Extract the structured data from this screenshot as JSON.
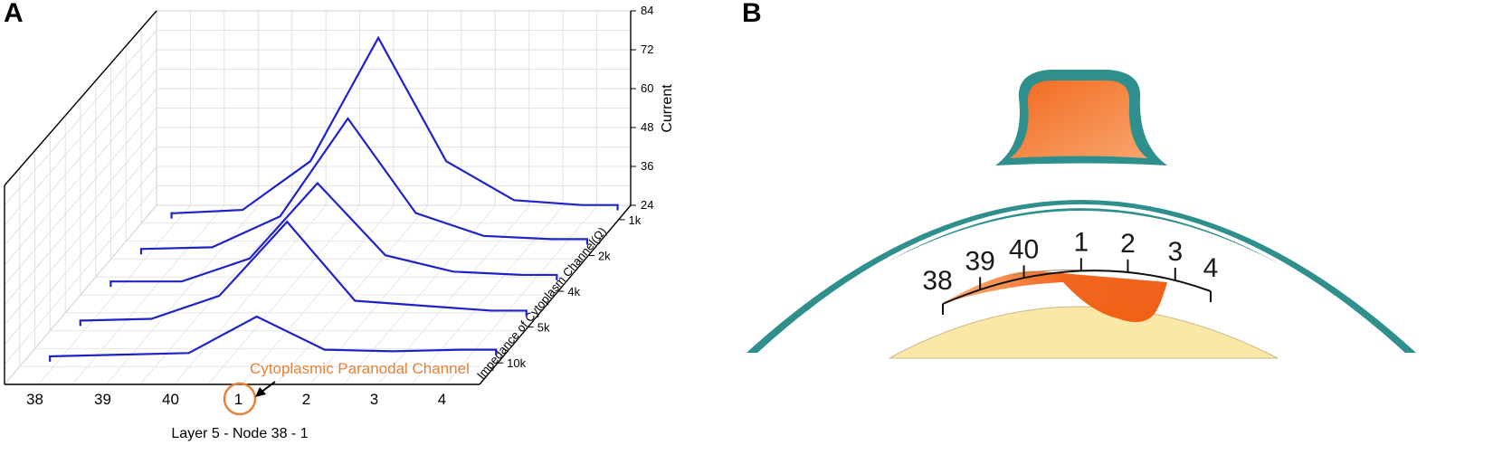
{
  "panels": {
    "a_letter": "A",
    "b_letter": "B"
  },
  "colors": {
    "line": "#1e22c8",
    "annotation": "#e8823a",
    "teal": "#2f8f8c",
    "teal_dark": "#1f6d6a",
    "orange_light": "#f7a46a",
    "orange_dark": "#f25c10",
    "axon": "#fbe7a6"
  },
  "chart_data": {
    "type": "line",
    "categories": [
      "38",
      "39",
      "40",
      "1",
      "2",
      "3",
      "4"
    ],
    "z_categories": [
      "1k",
      "2k",
      "4k",
      "5k",
      "10k"
    ],
    "zlabel": "Current",
    "zlim": [
      24,
      84
    ],
    "z_ticks": [
      "24",
      "36",
      "48",
      "60",
      "72",
      "84"
    ],
    "ylabel": "Impedance of Cytoplasm Channel(Ω)",
    "xlabel": "Layer 5 - Node 38 - 1",
    "series": [
      {
        "name": "1k",
        "values": [
          26,
          27,
          42,
          80,
          42,
          30,
          28.5
        ]
      },
      {
        "name": "2k",
        "values": [
          26,
          26.5,
          36,
          66,
          37,
          30,
          29
        ]
      },
      {
        "name": "4k",
        "values": [
          27,
          27,
          34,
          57,
          35,
          30,
          29
        ]
      },
      {
        "name": "5k",
        "values": [
          26,
          26.5,
          33.5,
          56,
          32,
          30.5,
          29
        ]
      },
      {
        "name": "10k",
        "values": [
          26,
          26.5,
          27,
          38,
          28,
          27.5,
          28
        ]
      }
    ],
    "annotation": "Cytoplasmic Paranodal Channel",
    "grid": true
  },
  "diagram_b": {
    "node_labels": [
      "38",
      "39",
      "40",
      "1",
      "2",
      "3",
      "4"
    ]
  }
}
